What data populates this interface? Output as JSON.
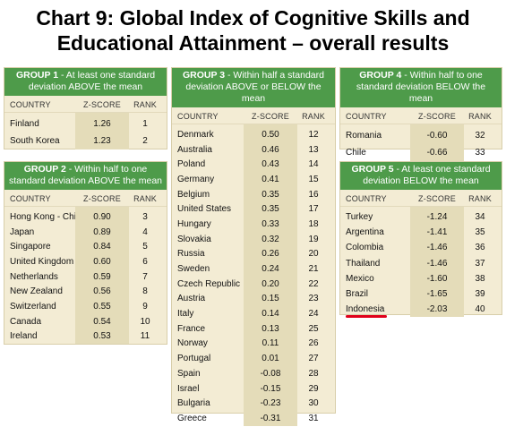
{
  "title_line1": "Chart 9: Global Index of Cognitive Skills and",
  "title_line2": "Educational Attainment – overall results",
  "column_headers": {
    "country": "COUNTRY",
    "z": "Z-SCORE",
    "rank": "RANK"
  },
  "chart_data": {
    "type": "table",
    "groups": [
      {
        "id": "g1",
        "label": "GROUP 1",
        "desc": " - At least one standard deviation ABOVE the mean",
        "rows": [
          {
            "country": "Finland",
            "z": "1.26",
            "rank": "1"
          },
          {
            "country": "South Korea",
            "z": "1.23",
            "rank": "2"
          }
        ]
      },
      {
        "id": "g2",
        "label": "GROUP 2",
        "desc": " - Within half to one standard deviation ABOVE the mean",
        "rows": [
          {
            "country": "Hong Kong - China",
            "z": "0.90",
            "rank": "3"
          },
          {
            "country": "Japan",
            "z": "0.89",
            "rank": "4"
          },
          {
            "country": "Singapore",
            "z": "0.84",
            "rank": "5"
          },
          {
            "country": "United Kingdom",
            "z": "0.60",
            "rank": "6"
          },
          {
            "country": "Netherlands",
            "z": "0.59",
            "rank": "7"
          },
          {
            "country": "New Zealand",
            "z": "0.56",
            "rank": "8"
          },
          {
            "country": "Switzerland",
            "z": "0.55",
            "rank": "9"
          },
          {
            "country": "Canada",
            "z": "0.54",
            "rank": "10"
          },
          {
            "country": "Ireland",
            "z": "0.53",
            "rank": "11"
          }
        ]
      },
      {
        "id": "g3",
        "label": "GROUP 3",
        "desc": " - Within half a standard deviation ABOVE or BELOW the mean",
        "rows": [
          {
            "country": "Denmark",
            "z": "0.50",
            "rank": "12"
          },
          {
            "country": "Australia",
            "z": "0.46",
            "rank": "13"
          },
          {
            "country": "Poland",
            "z": "0.43",
            "rank": "14"
          },
          {
            "country": "Germany",
            "z": "0.41",
            "rank": "15"
          },
          {
            "country": "Belgium",
            "z": "0.35",
            "rank": "16"
          },
          {
            "country": "United States",
            "z": "0.35",
            "rank": "17"
          },
          {
            "country": "Hungary",
            "z": "0.33",
            "rank": "18"
          },
          {
            "country": "Slovakia",
            "z": "0.32",
            "rank": "19"
          },
          {
            "country": "Russia",
            "z": "0.26",
            "rank": "20"
          },
          {
            "country": "Sweden",
            "z": "0.24",
            "rank": "21"
          },
          {
            "country": "Czech Republic",
            "z": "0.20",
            "rank": "22"
          },
          {
            "country": "Austria",
            "z": "0.15",
            "rank": "23"
          },
          {
            "country": "Italy",
            "z": "0.14",
            "rank": "24"
          },
          {
            "country": "France",
            "z": "0.13",
            "rank": "25"
          },
          {
            "country": "Norway",
            "z": "0.11",
            "rank": "26"
          },
          {
            "country": "Portugal",
            "z": "0.01",
            "rank": "27"
          },
          {
            "country": "Spain",
            "z": "-0.08",
            "rank": "28"
          },
          {
            "country": "Israel",
            "z": "-0.15",
            "rank": "29"
          },
          {
            "country": "Bulgaria",
            "z": "-0.23",
            "rank": "30"
          },
          {
            "country": "Greece",
            "z": "-0.31",
            "rank": "31"
          }
        ]
      },
      {
        "id": "g4",
        "label": "GROUP 4",
        "desc": " - Within half to one standard deviation BELOW the mean",
        "rows": [
          {
            "country": "Romania",
            "z": "-0.60",
            "rank": "32"
          },
          {
            "country": "Chile",
            "z": "-0.66",
            "rank": "33"
          }
        ]
      },
      {
        "id": "g5",
        "label": "GROUP 5",
        "desc": " - At least one standard deviation BELOW the mean",
        "rows": [
          {
            "country": "Turkey",
            "z": "-1.24",
            "rank": "34"
          },
          {
            "country": "Argentina",
            "z": "-1.41",
            "rank": "35"
          },
          {
            "country": "Colombia",
            "z": "-1.46",
            "rank": "36"
          },
          {
            "country": "Thailand",
            "z": "-1.46",
            "rank": "37"
          },
          {
            "country": "Mexico",
            "z": "-1.60",
            "rank": "38"
          },
          {
            "country": "Brazil",
            "z": "-1.65",
            "rank": "39"
          },
          {
            "country": "Indonesia",
            "z": "-2.03",
            "rank": "40",
            "highlight": true
          }
        ]
      }
    ]
  },
  "colors": {
    "header_green": "#4e9b4a",
    "panel_bg": "#f3ecd4",
    "zscore_band": "#e4dcb9",
    "highlight_underline": "#e0001a"
  }
}
